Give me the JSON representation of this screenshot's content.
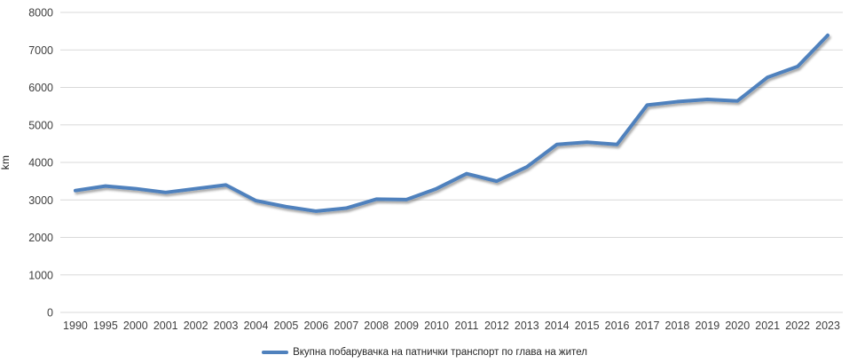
{
  "chart_data": {
    "type": "line",
    "title": "",
    "xlabel": "",
    "ylabel": "km",
    "categories": [
      "1990",
      "1995",
      "2000",
      "2001",
      "2002",
      "2003",
      "2004",
      "2005",
      "2006",
      "2007",
      "2008",
      "2009",
      "2010",
      "2011",
      "2012",
      "2013",
      "2014",
      "2015",
      "2016",
      "2017",
      "2018",
      "2019",
      "2020",
      "2021",
      "2022",
      "2023"
    ],
    "series": [
      {
        "name": "Вкупна побарувачка на патнички транспорт по глава на жител",
        "values": [
          3250,
          3370,
          3300,
          3200,
          3300,
          3400,
          2980,
          2820,
          2700,
          2780,
          3020,
          3010,
          3300,
          3700,
          3500,
          3880,
          4480,
          4540,
          4480,
          5530,
          5620,
          5680,
          5640,
          6270,
          6560,
          7390
        ],
        "color": "#4F81BD"
      }
    ],
    "ylim": [
      0,
      8000
    ],
    "ytick_step": 1000,
    "grid": "horizontal-gridlines",
    "legend_position": "bottom",
    "colors": {
      "gridline": "#D9D9D9",
      "axis_text": "#3F3F3F",
      "background": "#FFFFFF"
    }
  }
}
